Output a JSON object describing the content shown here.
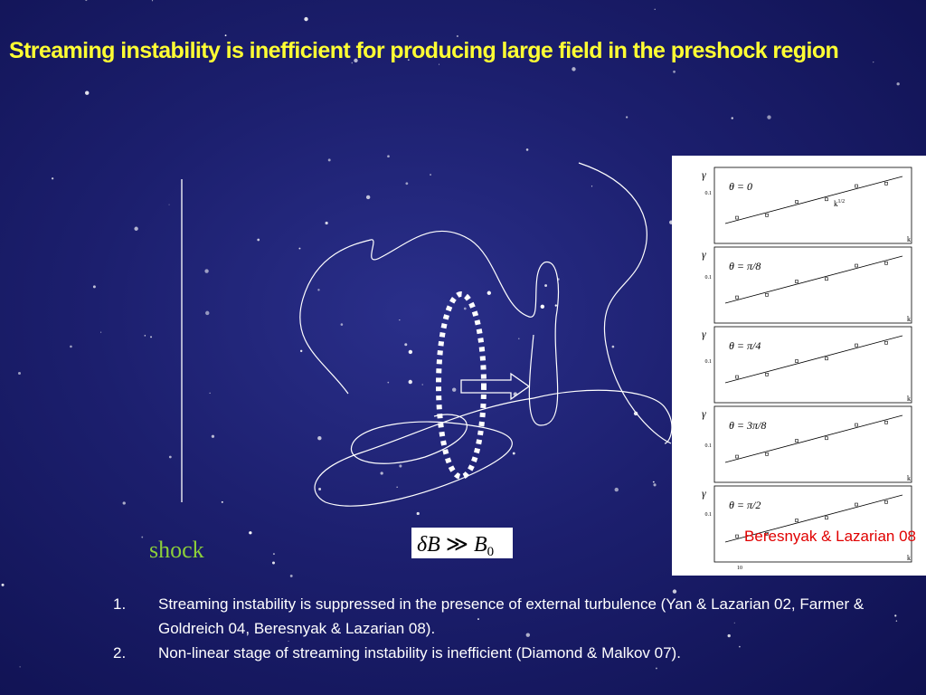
{
  "title": "Streaming instability is inefficient for producing large field in the preshock region",
  "shock_label": "shock",
  "formula": {
    "left": "δB",
    "relation": "≫",
    "right": "B",
    "subscript": "0"
  },
  "figure": {
    "caption": "Beresnyak & Lazarian 08",
    "panels": [
      {
        "label": "θ = 0",
        "y_label": "γ",
        "y_tick": "0.1",
        "x_label": "k",
        "annotation": "k",
        "annotation_sup": "1/2"
      },
      {
        "label": "θ = π/8",
        "y_label": "γ",
        "y_tick": "0.1",
        "x_label": "k"
      },
      {
        "label": "θ = π/4",
        "y_label": "γ",
        "y_tick": "0.1",
        "x_label": "k"
      },
      {
        "label": "θ = 3π/8",
        "y_label": "γ",
        "y_tick": "0.1",
        "x_label": "k"
      },
      {
        "label": "θ = π/2",
        "y_label": "γ",
        "y_tick": "0.1",
        "x_label": "k",
        "x_tick": "10"
      }
    ]
  },
  "list": [
    {
      "number": "1.",
      "text": "Streaming instability is suppressed in the presence of external turbulence (Yan & Lazarian 02, Farmer & Goldreich 04, Beresnyak & Lazarian 08)."
    },
    {
      "number": "2.",
      "text": "Non-linear stage of streaming instability is inefficient (Diamond & Malkov 07)."
    }
  ]
}
